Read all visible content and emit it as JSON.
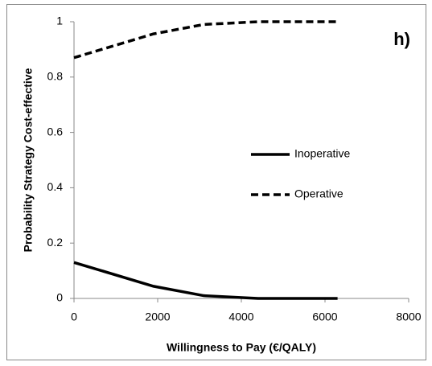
{
  "chart_data": {
    "type": "line",
    "annotation": "h)",
    "x_label": "Willingness to Pay (€/QALY)",
    "y_label": "Probability Strategy Cost-effective",
    "x": [
      0,
      1900,
      3100,
      4400,
      6300
    ],
    "series": [
      {
        "name": "Inoperative",
        "color": "#000000",
        "style": "solid",
        "values": [
          0.13,
          0.044,
          0.01,
          0,
          0
        ]
      },
      {
        "name": "Operative",
        "color": "#000000",
        "style": "dashed",
        "values": [
          0.87,
          0.956,
          0.99,
          1,
          1
        ]
      }
    ],
    "xlim": [
      0,
      8000
    ],
    "xticks": [
      0,
      2000,
      4000,
      6000,
      8000
    ],
    "ylim": [
      0,
      1
    ],
    "yticks": [
      0,
      0.2,
      0.4,
      0.6,
      0.8,
      1
    ],
    "grid": false,
    "legend": "center-right"
  }
}
